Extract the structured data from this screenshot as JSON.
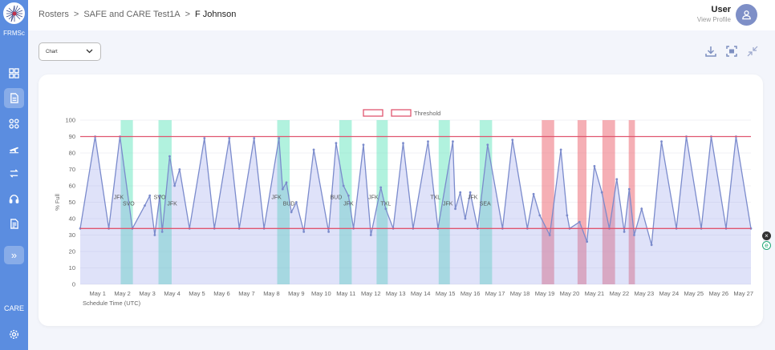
{
  "app": {
    "logo_label": "FRMSc",
    "care_label": "CARE"
  },
  "breadcrumb": {
    "items": [
      "Rosters",
      "SAFE and CARE Test1A"
    ],
    "current": "F Johnson",
    "separator": ">"
  },
  "user": {
    "name": "User",
    "link": "View Profile"
  },
  "toolbar": {
    "view_select": "Chart"
  },
  "chart_data": {
    "type": "line",
    "ylabel": "% Full",
    "xlabel": "Schedule Time (UTC)",
    "ylim": [
      0,
      100
    ],
    "yticks": [
      0,
      10,
      20,
      30,
      40,
      50,
      60,
      70,
      80,
      90,
      100
    ],
    "xlim": [
      0.3,
      27.3
    ],
    "xticks": [
      "May 1",
      "May 2",
      "May 3",
      "May 4",
      "May 5",
      "May 6",
      "May 7",
      "May 8",
      "May 9",
      "May 10",
      "May 11",
      "May 12",
      "May 13",
      "May 14",
      "May 15",
      "May 16",
      "May 17",
      "May 18",
      "May 19",
      "May 20",
      "May 21",
      "May 22",
      "May 23",
      "May 24",
      "May 25",
      "May 26",
      "May 27"
    ],
    "legend": {
      "placement": "top-center",
      "entries": [
        "",
        "Threshold"
      ]
    },
    "thresholds": [
      {
        "value": 90,
        "color": "#e0566f"
      },
      {
        "value": 34,
        "color": "#e0566f"
      }
    ],
    "series_color": "#7b8bcc",
    "series": [
      {
        "x": [
          0.3,
          0.9,
          1.45,
          1.9,
          2.4,
          2.9,
          3.1,
          3.3,
          3.5,
          3.6,
          3.9,
          4.1,
          4.3,
          4.7,
          5.3,
          5.7,
          6.3,
          6.7,
          7.3,
          7.7,
          8.3,
          8.45,
          8.6,
          8.8,
          9.0,
          9.3,
          9.7,
          10.3,
          10.6,
          10.9,
          11.1,
          11.3,
          11.7,
          12.0,
          12.4,
          12.6,
          12.9,
          13.3,
          13.7,
          14.3,
          14.7,
          15.3,
          15.4,
          15.6,
          15.8,
          16.0,
          16.3,
          16.7,
          17.3,
          17.7,
          18.3,
          18.55,
          18.8,
          19.2,
          19.65,
          19.9,
          20.0,
          20.4,
          20.7,
          21.0,
          21.3,
          21.6,
          21.9,
          22.2,
          22.4,
          22.6,
          22.9,
          23.3,
          23.7,
          24.3,
          24.7,
          25.3,
          25.7,
          26.3,
          26.7,
          27.3
        ],
        "y": [
          34,
          90,
          34,
          90,
          34,
          48,
          54,
          30,
          54,
          32,
          78,
          60,
          70,
          34,
          89,
          34,
          89,
          34,
          89,
          34,
          89,
          58,
          62,
          44,
          50,
          32,
          82,
          32,
          86,
          60,
          54,
          34,
          85,
          30,
          59,
          46,
          34,
          86,
          34,
          87,
          34,
          87,
          46,
          56,
          40,
          56,
          34,
          85,
          34,
          88,
          34,
          55,
          42,
          30,
          82,
          42,
          34,
          38,
          26,
          72,
          56,
          34,
          64,
          32,
          58,
          30,
          46,
          24,
          87,
          34,
          90,
          34,
          90,
          34,
          90,
          34
        ],
        "labels": [
          {
            "x": 1.85,
            "y": 52,
            "text": "JFK"
          },
          {
            "x": 2.25,
            "y": 48,
            "text": "SVO"
          },
          {
            "x": 3.5,
            "y": 52,
            "text": "SVO"
          },
          {
            "x": 4.0,
            "y": 48,
            "text": "JFK"
          },
          {
            "x": 8.2,
            "y": 52,
            "text": "JFK"
          },
          {
            "x": 8.7,
            "y": 48,
            "text": "BUD"
          },
          {
            "x": 10.6,
            "y": 52,
            "text": "BUD"
          },
          {
            "x": 11.1,
            "y": 48,
            "text": "JFK"
          },
          {
            "x": 12.1,
            "y": 52,
            "text": "JFK"
          },
          {
            "x": 12.6,
            "y": 48,
            "text": "TXL"
          },
          {
            "x": 14.6,
            "y": 52,
            "text": "TXL"
          },
          {
            "x": 15.1,
            "y": 48,
            "text": "JFK"
          },
          {
            "x": 16.1,
            "y": 52,
            "text": "JFK"
          },
          {
            "x": 16.6,
            "y": 48,
            "text": "SEA"
          }
        ]
      }
    ],
    "bands": [
      {
        "from": 1.93,
        "to": 2.42,
        "color": "green"
      },
      {
        "from": 3.45,
        "to": 3.98,
        "color": "green"
      },
      {
        "from": 8.23,
        "to": 8.73,
        "color": "green"
      },
      {
        "from": 10.73,
        "to": 11.23,
        "color": "green"
      },
      {
        "from": 12.23,
        "to": 12.68,
        "color": "green"
      },
      {
        "from": 14.73,
        "to": 15.18,
        "color": "green"
      },
      {
        "from": 16.38,
        "to": 16.88,
        "color": "green"
      },
      {
        "from": 18.88,
        "to": 19.38,
        "color": "red"
      },
      {
        "from": 20.32,
        "to": 20.68,
        "color": "red"
      },
      {
        "from": 21.32,
        "to": 21.83,
        "color": "red"
      },
      {
        "from": 22.38,
        "to": 22.63,
        "color": "red"
      }
    ]
  }
}
